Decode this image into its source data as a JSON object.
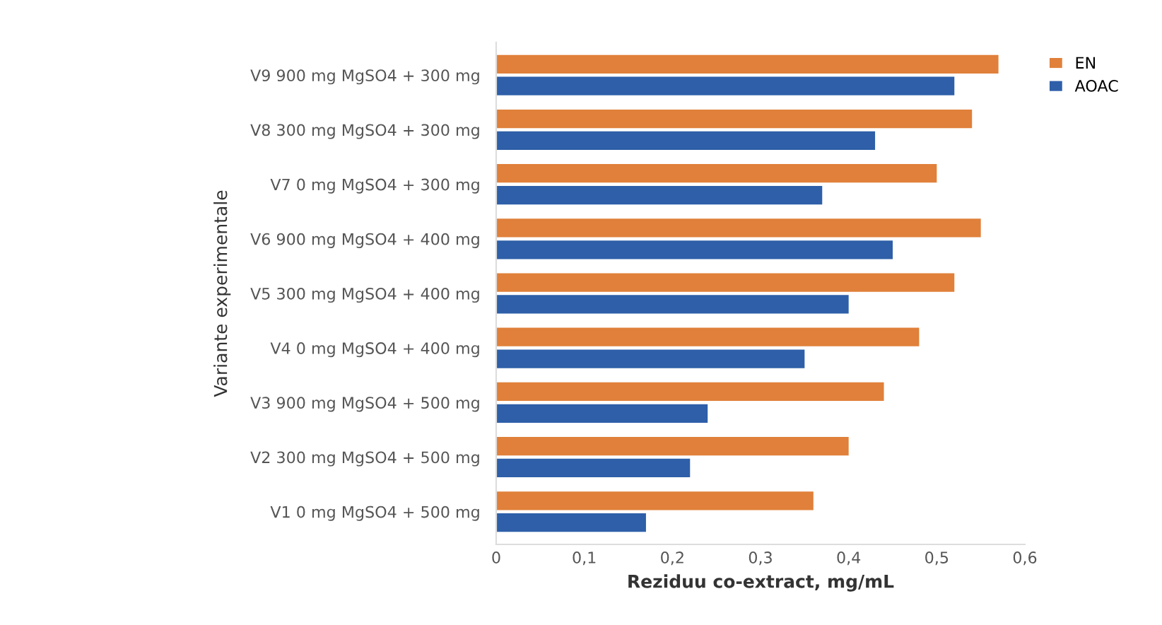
{
  "chart_data": {
    "type": "bar",
    "orientation": "horizontal",
    "xlabel": "Reziduu co-extract, mg/mL",
    "ylabel": "Variante experimentale",
    "categories": [
      "V9 900 mg MgSO4 + 300 mg",
      "V8 300 mg MgSO4 + 300 mg",
      "V7 0 mg MgSO4 + 300 mg",
      "V6 900 mg MgSO4 + 400 mg",
      "V5 300 mg MgSO4 + 400 mg",
      "V4 0 mg MgSO4 + 400 mg",
      "V3 900 mg MgSO4 + 500 mg",
      "V2 300 mg MgSO4 + 500 mg",
      "V1 0 mg MgSO4 + 500 mg"
    ],
    "series": [
      {
        "name": "EN",
        "color": "#e0803a",
        "values": [
          0.57,
          0.54,
          0.5,
          0.55,
          0.52,
          0.48,
          0.44,
          0.4,
          0.36
        ]
      },
      {
        "name": "AOAC",
        "color": "#2e5fa8",
        "values": [
          0.52,
          0.43,
          0.37,
          0.45,
          0.4,
          0.35,
          0.24,
          0.22,
          0.17
        ]
      }
    ],
    "xlim": [
      0,
      0.6
    ],
    "xticks": [
      0,
      {
        "value": 0.1,
        "label": "0,1"
      },
      {
        "value": 0.2,
        "label": "0,2"
      },
      {
        "value": 0.3,
        "label": "0,3"
      },
      {
        "value": 0.4,
        "label": "0,4"
      },
      {
        "value": 0.5,
        "label": "0,5"
      },
      {
        "value": 0.6,
        "label": "0,6"
      }
    ],
    "grid": false,
    "legend": "top right"
  }
}
